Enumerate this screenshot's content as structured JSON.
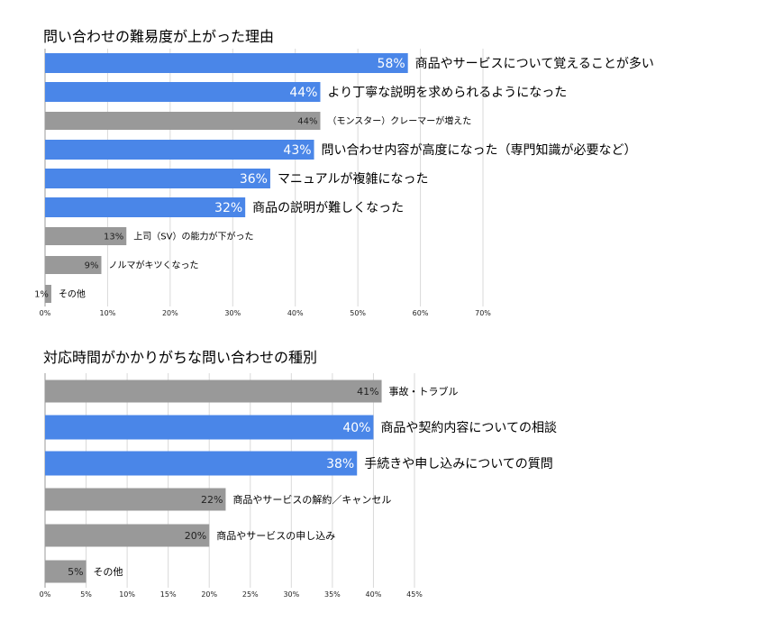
{
  "chart_data": [
    {
      "type": "bar",
      "orientation": "horizontal",
      "title": "問い合わせの難易度が上がった理由",
      "categories": [
        "商品やサービスについて覚えることが多い",
        "より丁寧な説明を求められるようになった",
        "（モンスター）クレーマーが増えた",
        "問い合わせ内容が高度になった（専門知識が必要など）",
        "マニュアルが複雑になった",
        "商品の説明が難しくなった",
        "上司（SV）の能力が下がった",
        "ノルマがキツくなった",
        "その他"
      ],
      "values": [
        58,
        44,
        44,
        43,
        36,
        32,
        13,
        9,
        1
      ],
      "value_labels": [
        "58%",
        "44%",
        "44%",
        "43%",
        "36%",
        "32%",
        "13%",
        "9%",
        "1%"
      ],
      "highlight": [
        true,
        true,
        false,
        true,
        true,
        true,
        false,
        false,
        false
      ],
      "xlim": [
        0,
        70
      ],
      "xticks": [
        "0%",
        "10%",
        "20%",
        "30%",
        "40%",
        "50%",
        "60%",
        "70%"
      ],
      "grid": true,
      "colors": {
        "highlight": "#4a86e8",
        "other": "#999999"
      }
    },
    {
      "type": "bar",
      "orientation": "horizontal",
      "title": "対応時間がかかりがちな問い合わせの種別",
      "categories": [
        "事故・トラブル",
        "商品や契約内容についての相談",
        "手続きや申し込みについての質問",
        "商品やサービスの解約／キャンセル",
        "商品やサービスの申し込み",
        "その他"
      ],
      "values": [
        41,
        40,
        38,
        22,
        20,
        5
      ],
      "value_labels": [
        "41%",
        "40%",
        "38%",
        "22%",
        "20%",
        "5%"
      ],
      "highlight": [
        false,
        true,
        true,
        false,
        false,
        false
      ],
      "xlim": [
        0,
        45
      ],
      "xticks": [
        "0%",
        "5%",
        "10%",
        "15%",
        "20%",
        "25%",
        "30%",
        "35%",
        "40%",
        "45%"
      ],
      "grid": true,
      "colors": {
        "highlight": "#4a86e8",
        "other": "#999999"
      }
    }
  ]
}
